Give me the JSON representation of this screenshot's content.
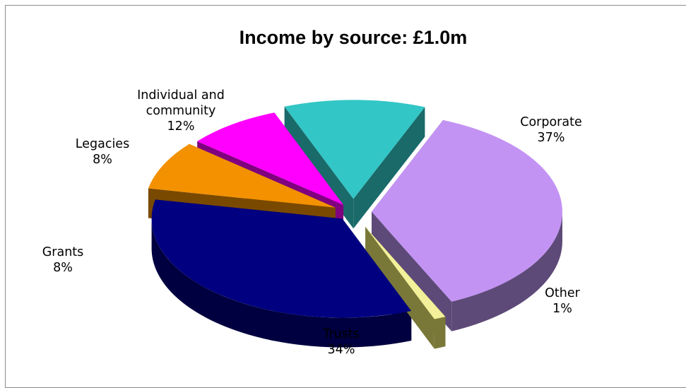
{
  "chart_data": {
    "type": "pie",
    "title": "Income by source: £1.0m",
    "categories": [
      "Corporate",
      "Other",
      "Trusts",
      "Grants",
      "Legacies",
      "Individual and community"
    ],
    "values": [
      37,
      1,
      34,
      8,
      8,
      12
    ],
    "labels": [
      {
        "lines": [
          "Corporate"
        ],
        "pct": "37%"
      },
      {
        "lines": [
          "Other"
        ],
        "pct": "1%"
      },
      {
        "lines": [
          "Trusts"
        ],
        "pct": "34%"
      },
      {
        "lines": [
          "Grants"
        ],
        "pct": "8%"
      },
      {
        "lines": [
          "Legacies"
        ],
        "pct": "8%"
      },
      {
        "lines": [
          "Individual and",
          "community"
        ],
        "pct": "12%"
      }
    ],
    "colors": [
      "#c393f4",
      "#f2f09a",
      "#000080",
      "#f39100",
      "#ff00ff",
      "#33c6c6"
    ],
    "side_colors": [
      "#5e4a78",
      "#7a7838",
      "#000040",
      "#7a4900",
      "#800080",
      "#1a6a6a"
    ],
    "exploded": true,
    "three_d": true,
    "legend": "none"
  }
}
